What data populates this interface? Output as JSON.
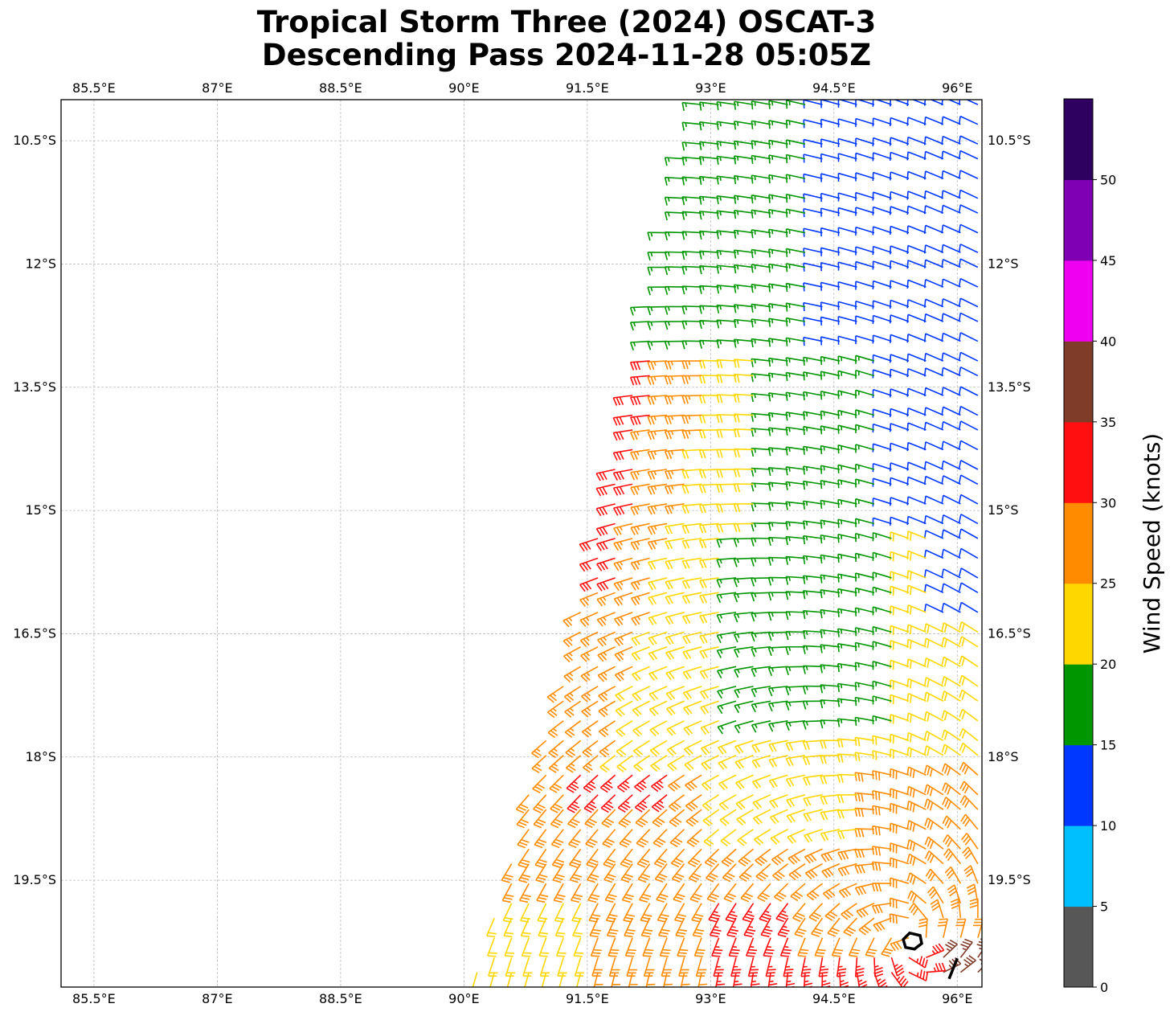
{
  "title": {
    "line1": "Tropical Storm Three (2024) OSCAT-3",
    "line2": "Descending Pass 2024-11-28 05:05Z"
  },
  "map": {
    "lon_range": [
      85.1,
      96.3
    ],
    "lat_range": [
      -20.8,
      -10.0
    ],
    "lon_ticks": [
      85.5,
      87,
      88.5,
      90,
      91.5,
      93,
      94.5,
      96
    ],
    "lon_tick_labels": [
      "85.5°E",
      "87°E",
      "88.5°E",
      "90°E",
      "91.5°E",
      "93°E",
      "94.5°E",
      "96°E"
    ],
    "lat_ticks": [
      -10.5,
      -12,
      -13.5,
      -15,
      -16.5,
      -18,
      -19.5
    ],
    "lat_tick_labels": [
      "10.5°S",
      "12°S",
      "13.5°S",
      "15°S",
      "16.5°S",
      "18°S",
      "19.5°S"
    ],
    "gridlines": true,
    "storm_center": {
      "lon": 95.45,
      "lat": -20.25
    },
    "storm_track_segment": {
      "from": {
        "lon": 95.9,
        "lat": -20.7
      },
      "to": {
        "lon": 96.0,
        "lat": -20.45
      }
    }
  },
  "colorbar": {
    "label": "Wind Speed (knots)",
    "bounds": [
      0,
      5,
      10,
      15,
      20,
      25,
      30,
      35,
      40,
      45,
      50,
      55
    ],
    "tick_labels": [
      "0",
      "5",
      "10",
      "15",
      "20",
      "25",
      "30",
      "35",
      "40",
      "45",
      "50"
    ],
    "colors": [
      "#575757",
      "#00bfff",
      "#0038ff",
      "#009600",
      "#ffd700",
      "#ff8c00",
      "#ff0f0f",
      "#7f3c28",
      "#f000f0",
      "#7f00b4",
      "#2e0060"
    ]
  },
  "chart_data": {
    "type": "wind-barbs",
    "units": "knots",
    "swath_west_edge": [
      {
        "lat": -10.0,
        "lon": 92.8
      },
      {
        "lat": -15.9,
        "lon": 91.5
      },
      {
        "lat": -20.85,
        "lon": 90.1
      }
    ],
    "speed_regions": [
      {
        "name": "outer-north-west",
        "speed_kt": 17
      },
      {
        "name": "north-east",
        "speed_kt": 12
      },
      {
        "name": "west-mid",
        "speed_kt": 22
      },
      {
        "name": "west-edge",
        "speed_kt": 27
      },
      {
        "name": "west-edge-core",
        "speed_kt": 32
      },
      {
        "name": "south",
        "speed_kt": 28
      },
      {
        "name": "south-core",
        "speed_kt": 33
      },
      {
        "name": "south-east-band",
        "speed_kt": 37
      },
      {
        "name": "center-south",
        "speed_kt": 22
      }
    ]
  }
}
